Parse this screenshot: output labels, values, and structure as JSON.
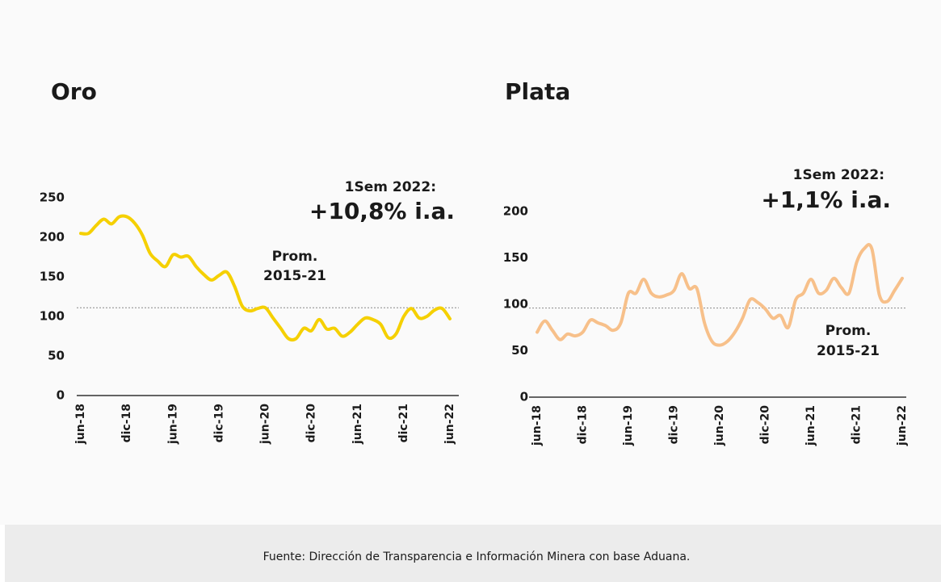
{
  "chart_data": [
    {
      "type": "line",
      "title": "Oro",
      "color": "#f5d000",
      "annotation": [
        "1Sem 2022:",
        "+10,8% i.a."
      ],
      "average": 111,
      "average_label": [
        "Prom.",
        "2015-21"
      ],
      "categories": [
        "jun-18",
        null,
        null,
        null,
        null,
        null,
        "dic-18",
        null,
        null,
        null,
        null,
        null,
        "jun-19",
        null,
        null,
        null,
        null,
        null,
        "dic-19",
        null,
        null,
        null,
        null,
        null,
        "jun-20",
        null,
        null,
        null,
        null,
        null,
        "dic-20",
        null,
        null,
        null,
        null,
        null,
        "jun-21",
        null,
        null,
        null,
        null,
        null,
        "dic-21",
        null,
        null,
        null,
        null,
        null,
        "jun-22"
      ],
      "values": [
        205,
        205,
        215,
        223,
        217,
        226,
        226,
        218,
        203,
        180,
        170,
        163,
        178,
        175,
        176,
        163,
        153,
        146,
        152,
        156,
        138,
        113,
        107,
        110,
        111,
        98,
        85,
        72,
        72,
        85,
        82,
        96,
        84,
        85,
        75,
        80,
        90,
        98,
        96,
        90,
        73,
        78,
        100,
        110,
        98,
        100,
        108,
        110,
        97
      ],
      "ylim": [
        0,
        250
      ],
      "yticks": [
        0,
        50,
        100,
        150,
        200,
        250
      ]
    },
    {
      "type": "line",
      "title": "Plata",
      "color": "#f7c08a",
      "annotation": [
        "1Sem 2022:",
        "+1,1% i.a."
      ],
      "average": 96,
      "average_label": [
        "Prom.",
        "2015-21"
      ],
      "categories": [
        "jun-18",
        null,
        null,
        null,
        null,
        null,
        "dic-18",
        null,
        null,
        null,
        null,
        null,
        "jun-19",
        null,
        null,
        null,
        null,
        null,
        "dic-19",
        null,
        null,
        null,
        null,
        null,
        "jun-20",
        null,
        null,
        null,
        null,
        null,
        "dic-20",
        null,
        null,
        null,
        null,
        null,
        "jun-21",
        null,
        null,
        null,
        null,
        null,
        "dic-21",
        null,
        null,
        null,
        null,
        null,
        "jun-22"
      ],
      "values": [
        70,
        82,
        72,
        62,
        68,
        66,
        70,
        83,
        80,
        77,
        72,
        80,
        112,
        112,
        127,
        112,
        108,
        110,
        115,
        133,
        117,
        117,
        80,
        60,
        56,
        60,
        70,
        85,
        105,
        102,
        95,
        85,
        88,
        75,
        105,
        112,
        127,
        112,
        115,
        128,
        118,
        112,
        145,
        160,
        160,
        110,
        103,
        115,
        128
      ],
      "ylim": [
        0,
        200
      ],
      "yticks": [
        0,
        50,
        100,
        150,
        200
      ]
    }
  ],
  "footer": "Fuente: Dirección de Transparencia e Información Minera con base Aduana."
}
